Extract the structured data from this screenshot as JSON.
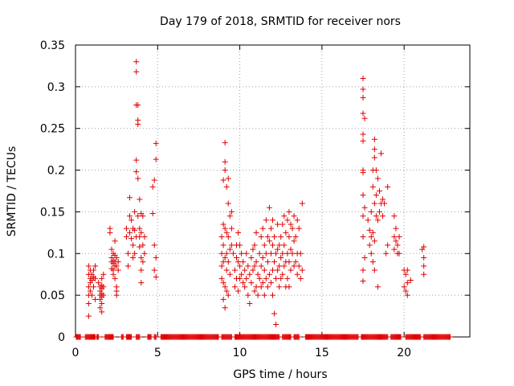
{
  "chart_data": {
    "type": "scatter",
    "title": "Day 179 of 2018, SRMTID for receiver nors",
    "xlabel": "GPS time / hours",
    "ylabel": "SRMTID / TECUs",
    "xlim": [
      0,
      24
    ],
    "ylim": [
      0,
      0.35
    ],
    "grid": true,
    "marker": "+",
    "color": "#e00000",
    "xticks": [
      {
        "value": 0,
        "label": "0"
      },
      {
        "value": 5,
        "label": "5"
      },
      {
        "value": 10,
        "label": "10"
      },
      {
        "value": 15,
        "label": "15"
      },
      {
        "value": 20,
        "label": "20"
      }
    ],
    "yticks": [
      {
        "value": 0,
        "label": "0"
      },
      {
        "value": 0.05,
        "label": "0.05"
      },
      {
        "value": 0.1,
        "label": "0.1"
      },
      {
        "value": 0.15,
        "label": "0.15"
      },
      {
        "value": 0.2,
        "label": "0.2"
      },
      {
        "value": 0.25,
        "label": "0.25"
      },
      {
        "value": 0.3,
        "label": "0.3"
      },
      {
        "value": 0.35,
        "label": "0.35"
      }
    ],
    "points": [
      [
        0.8,
        0.085
      ],
      [
        0.8,
        0.075
      ],
      [
        0.8,
        0.06
      ],
      [
        0.8,
        0.05
      ],
      [
        0.8,
        0.04
      ],
      [
        0.8,
        0.025
      ],
      [
        0.9,
        0.08
      ],
      [
        0.9,
        0.07
      ],
      [
        0.9,
        0.065
      ],
      [
        0.9,
        0.055
      ],
      [
        1.0,
        0.075
      ],
      [
        1.0,
        0.068
      ],
      [
        1.0,
        0.05
      ],
      [
        1.1,
        0.08
      ],
      [
        1.1,
        0.072
      ],
      [
        1.1,
        0.06
      ],
      [
        1.2,
        0.085
      ],
      [
        1.2,
        0.07
      ],
      [
        1.2,
        0.045
      ],
      [
        1.4,
        0.065
      ],
      [
        1.5,
        0.06
      ],
      [
        1.5,
        0.055
      ],
      [
        1.5,
        0.05
      ],
      [
        1.5,
        0.045
      ],
      [
        1.5,
        0.035
      ],
      [
        1.6,
        0.07
      ],
      [
        1.6,
        0.062
      ],
      [
        1.6,
        0.058
      ],
      [
        1.6,
        0.052
      ],
      [
        1.6,
        0.048
      ],
      [
        1.6,
        0.04
      ],
      [
        1.6,
        0.03
      ],
      [
        1.7,
        0.075
      ],
      [
        1.7,
        0.06
      ],
      [
        1.7,
        0.05
      ],
      [
        2.1,
        0.13
      ],
      [
        2.1,
        0.125
      ],
      [
        2.2,
        0.105
      ],
      [
        2.2,
        0.095
      ],
      [
        2.2,
        0.09
      ],
      [
        2.2,
        0.082
      ],
      [
        2.3,
        0.1
      ],
      [
        2.3,
        0.092
      ],
      [
        2.3,
        0.088
      ],
      [
        2.3,
        0.08
      ],
      [
        2.3,
        0.075
      ],
      [
        2.4,
        0.115
      ],
      [
        2.4,
        0.098
      ],
      [
        2.4,
        0.09
      ],
      [
        2.4,
        0.085
      ],
      [
        2.4,
        0.07
      ],
      [
        2.5,
        0.095
      ],
      [
        2.5,
        0.085
      ],
      [
        2.5,
        0.06
      ],
      [
        2.5,
        0.055
      ],
      [
        2.5,
        0.05
      ],
      [
        2.6,
        0.09
      ],
      [
        2.6,
        0.08
      ],
      [
        3.1,
        0.13
      ],
      [
        3.1,
        0.12
      ],
      [
        3.2,
        0.1
      ],
      [
        3.2,
        0.085
      ],
      [
        3.3,
        0.145
      ],
      [
        3.3,
        0.167
      ],
      [
        3.3,
        0.125
      ],
      [
        3.4,
        0.14
      ],
      [
        3.4,
        0.118
      ],
      [
        3.5,
        0.13
      ],
      [
        3.5,
        0.11
      ],
      [
        3.5,
        0.095
      ],
      [
        3.6,
        0.15
      ],
      [
        3.6,
        0.128
      ],
      [
        3.6,
        0.1
      ],
      [
        3.7,
        0.33
      ],
      [
        3.7,
        0.318
      ],
      [
        3.7,
        0.278
      ],
      [
        3.7,
        0.212
      ],
      [
        3.7,
        0.198
      ],
      [
        3.7,
        0.12
      ],
      [
        3.8,
        0.278
      ],
      [
        3.8,
        0.26
      ],
      [
        3.8,
        0.255
      ],
      [
        3.8,
        0.19
      ],
      [
        3.8,
        0.145
      ],
      [
        3.9,
        0.165
      ],
      [
        3.9,
        0.13
      ],
      [
        3.9,
        0.12
      ],
      [
        3.9,
        0.108
      ],
      [
        4.0,
        0.148
      ],
      [
        4.0,
        0.125
      ],
      [
        4.0,
        0.095
      ],
      [
        4.0,
        0.08
      ],
      [
        4.0,
        0.065
      ],
      [
        4.1,
        0.145
      ],
      [
        4.1,
        0.11
      ],
      [
        4.1,
        0.09
      ],
      [
        4.2,
        0.12
      ],
      [
        4.2,
        0.1
      ],
      [
        4.7,
        0.18
      ],
      [
        4.7,
        0.148
      ],
      [
        4.8,
        0.188
      ],
      [
        4.8,
        0.11
      ],
      [
        4.8,
        0.08
      ],
      [
        4.9,
        0.232
      ],
      [
        4.9,
        0.213
      ],
      [
        4.9,
        0.095
      ],
      [
        4.9,
        0.072
      ],
      [
        8.9,
        0.12
      ],
      [
        8.9,
        0.1
      ],
      [
        8.9,
        0.085
      ],
      [
        8.9,
        0.07
      ],
      [
        9.0,
        0.188
      ],
      [
        9.0,
        0.135
      ],
      [
        9.0,
        0.11
      ],
      [
        9.0,
        0.09
      ],
      [
        9.0,
        0.065
      ],
      [
        9.0,
        0.045
      ],
      [
        9.1,
        0.233
      ],
      [
        9.1,
        0.21
      ],
      [
        9.1,
        0.2
      ],
      [
        9.1,
        0.13
      ],
      [
        9.1,
        0.095
      ],
      [
        9.1,
        0.06
      ],
      [
        9.1,
        0.035
      ],
      [
        9.2,
        0.18
      ],
      [
        9.2,
        0.125
      ],
      [
        9.2,
        0.1
      ],
      [
        9.2,
        0.08
      ],
      [
        9.2,
        0.055
      ],
      [
        9.3,
        0.19
      ],
      [
        9.3,
        0.16
      ],
      [
        9.3,
        0.12
      ],
      [
        9.3,
        0.09
      ],
      [
        9.3,
        0.05
      ],
      [
        9.4,
        0.145
      ],
      [
        9.4,
        0.105
      ],
      [
        9.4,
        0.075
      ],
      [
        9.5,
        0.15
      ],
      [
        9.5,
        0.13
      ],
      [
        9.5,
        0.11
      ],
      [
        9.6,
        0.1
      ],
      [
        9.7,
        0.08
      ],
      [
        9.7,
        0.06
      ],
      [
        9.8,
        0.11
      ],
      [
        9.8,
        0.095
      ],
      [
        9.8,
        0.07
      ],
      [
        9.9,
        0.125
      ],
      [
        9.9,
        0.09
      ],
      [
        9.9,
        0.055
      ],
      [
        10.0,
        0.11
      ],
      [
        10.0,
        0.085
      ],
      [
        10.0,
        0.07
      ],
      [
        10.1,
        0.1
      ],
      [
        10.1,
        0.075
      ],
      [
        10.2,
        0.09
      ],
      [
        10.2,
        0.065
      ],
      [
        10.3,
        0.08
      ],
      [
        10.3,
        0.06
      ],
      [
        10.4,
        0.1
      ],
      [
        10.4,
        0.07
      ],
      [
        10.5,
        0.085
      ],
      [
        10.5,
        0.05
      ],
      [
        10.6,
        0.075
      ],
      [
        10.6,
        0.04
      ],
      [
        10.7,
        0.095
      ],
      [
        10.7,
        0.065
      ],
      [
        10.8,
        0.105
      ],
      [
        10.8,
        0.08
      ],
      [
        10.9,
        0.11
      ],
      [
        10.9,
        0.085
      ],
      [
        10.9,
        0.055
      ],
      [
        11.0,
        0.125
      ],
      [
        11.0,
        0.09
      ],
      [
        11.0,
        0.06
      ],
      [
        11.1,
        0.075
      ],
      [
        11.1,
        0.05
      ],
      [
        11.2,
        0.1
      ],
      [
        11.2,
        0.07
      ],
      [
        11.3,
        0.12
      ],
      [
        11.3,
        0.085
      ],
      [
        11.3,
        0.06
      ],
      [
        11.4,
        0.13
      ],
      [
        11.4,
        0.095
      ],
      [
        11.4,
        0.065
      ],
      [
        11.5,
        0.11
      ],
      [
        11.5,
        0.08
      ],
      [
        11.5,
        0.05
      ],
      [
        11.6,
        0.14
      ],
      [
        11.6,
        0.1
      ],
      [
        11.6,
        0.07
      ],
      [
        11.7,
        0.12
      ],
      [
        11.7,
        0.09
      ],
      [
        11.7,
        0.06
      ],
      [
        11.8,
        0.155
      ],
      [
        11.8,
        0.115
      ],
      [
        11.8,
        0.075
      ],
      [
        11.9,
        0.13
      ],
      [
        11.9,
        0.1
      ],
      [
        11.9,
        0.065
      ],
      [
        12.0,
        0.14
      ],
      [
        12.0,
        0.11
      ],
      [
        12.0,
        0.08
      ],
      [
        12.0,
        0.05
      ],
      [
        12.1,
        0.12
      ],
      [
        12.1,
        0.09
      ],
      [
        12.1,
        0.028
      ],
      [
        12.2,
        0.1
      ],
      [
        12.2,
        0.07
      ],
      [
        12.2,
        0.015
      ],
      [
        12.3,
        0.135
      ],
      [
        12.3,
        0.105
      ],
      [
        12.3,
        0.08
      ],
      [
        12.4,
        0.11
      ],
      [
        12.4,
        0.085
      ],
      [
        12.4,
        0.06
      ],
      [
        12.5,
        0.12
      ],
      [
        12.5,
        0.095
      ],
      [
        12.5,
        0.07
      ],
      [
        12.6,
        0.135
      ],
      [
        12.6,
        0.1
      ],
      [
        12.6,
        0.075
      ],
      [
        12.7,
        0.145
      ],
      [
        12.7,
        0.11
      ],
      [
        12.7,
        0.085
      ],
      [
        12.8,
        0.125
      ],
      [
        12.8,
        0.09
      ],
      [
        12.8,
        0.06
      ],
      [
        12.9,
        0.14
      ],
      [
        12.9,
        0.1
      ],
      [
        12.9,
        0.07
      ],
      [
        13.0,
        0.15
      ],
      [
        13.0,
        0.12
      ],
      [
        13.0,
        0.09
      ],
      [
        13.0,
        0.06
      ],
      [
        13.1,
        0.135
      ],
      [
        13.1,
        0.105
      ],
      [
        13.1,
        0.08
      ],
      [
        13.2,
        0.13
      ],
      [
        13.2,
        0.1
      ],
      [
        13.3,
        0.145
      ],
      [
        13.3,
        0.115
      ],
      [
        13.3,
        0.085
      ],
      [
        13.4,
        0.12
      ],
      [
        13.4,
        0.09
      ],
      [
        13.5,
        0.14
      ],
      [
        13.5,
        0.1
      ],
      [
        13.5,
        0.075
      ],
      [
        13.6,
        0.13
      ],
      [
        13.6,
        0.085
      ],
      [
        13.7,
        0.1
      ],
      [
        13.7,
        0.07
      ],
      [
        13.8,
        0.16
      ],
      [
        13.8,
        0.08
      ],
      [
        17.5,
        0.31
      ],
      [
        17.5,
        0.297
      ],
      [
        17.5,
        0.287
      ],
      [
        17.5,
        0.268
      ],
      [
        17.5,
        0.243
      ],
      [
        17.5,
        0.235
      ],
      [
        17.5,
        0.2
      ],
      [
        17.5,
        0.197
      ],
      [
        17.5,
        0.17
      ],
      [
        17.5,
        0.145
      ],
      [
        17.5,
        0.12
      ],
      [
        17.5,
        0.08
      ],
      [
        17.5,
        0.067
      ],
      [
        17.6,
        0.262
      ],
      [
        17.6,
        0.155
      ],
      [
        17.6,
        0.095
      ],
      [
        17.8,
        0.14
      ],
      [
        17.9,
        0.128
      ],
      [
        17.9,
        0.11
      ],
      [
        18.0,
        0.15
      ],
      [
        18.0,
        0.12
      ],
      [
        18.0,
        0.1
      ],
      [
        18.1,
        0.2
      ],
      [
        18.1,
        0.18
      ],
      [
        18.1,
        0.125
      ],
      [
        18.1,
        0.09
      ],
      [
        18.2,
        0.237
      ],
      [
        18.2,
        0.225
      ],
      [
        18.2,
        0.215
      ],
      [
        18.2,
        0.16
      ],
      [
        18.2,
        0.115
      ],
      [
        18.2,
        0.08
      ],
      [
        18.3,
        0.2
      ],
      [
        18.3,
        0.17
      ],
      [
        18.3,
        0.145
      ],
      [
        18.4,
        0.19
      ],
      [
        18.4,
        0.14
      ],
      [
        18.4,
        0.06
      ],
      [
        18.5,
        0.175
      ],
      [
        18.5,
        0.15
      ],
      [
        18.6,
        0.22
      ],
      [
        18.6,
        0.16
      ],
      [
        18.7,
        0.165
      ],
      [
        18.7,
        0.145
      ],
      [
        18.8,
        0.16
      ],
      [
        18.9,
        0.1
      ],
      [
        19.0,
        0.18
      ],
      [
        19.0,
        0.11
      ],
      [
        19.4,
        0.145
      ],
      [
        19.4,
        0.12
      ],
      [
        19.4,
        0.105
      ],
      [
        19.5,
        0.13
      ],
      [
        19.5,
        0.115
      ],
      [
        19.6,
        0.11
      ],
      [
        19.6,
        0.1
      ],
      [
        19.7,
        0.12
      ],
      [
        19.7,
        0.1
      ],
      [
        20.0,
        0.08
      ],
      [
        20.0,
        0.06
      ],
      [
        20.1,
        0.075
      ],
      [
        20.1,
        0.055
      ],
      [
        20.2,
        0.08
      ],
      [
        20.2,
        0.065
      ],
      [
        20.2,
        0.05
      ],
      [
        20.4,
        0.068
      ],
      [
        21.1,
        0.105
      ],
      [
        21.2,
        0.108
      ],
      [
        21.2,
        0.095
      ],
      [
        21.2,
        0.085
      ],
      [
        21.2,
        0.075
      ]
    ],
    "zero_points": [
      [
        0.05,
        0.3
      ],
      [
        0.6,
        1.2
      ],
      [
        1.3,
        1.4
      ],
      [
        1.8,
        2.3
      ],
      [
        2.8,
        2.9
      ],
      [
        3.1,
        3.4
      ],
      [
        3.7,
        3.9
      ],
      [
        4.4,
        4.6
      ],
      [
        4.8,
        4.9
      ],
      [
        5.2,
        8.7
      ],
      [
        8.9,
        9.5
      ],
      [
        9.7,
        12.4
      ],
      [
        12.6,
        13.1
      ],
      [
        13.3,
        13.6
      ],
      [
        14.0,
        17.2
      ],
      [
        17.4,
        19.0
      ],
      [
        19.2,
        19.8
      ],
      [
        20.1,
        21.0
      ],
      [
        21.2,
        22.8
      ]
    ]
  }
}
